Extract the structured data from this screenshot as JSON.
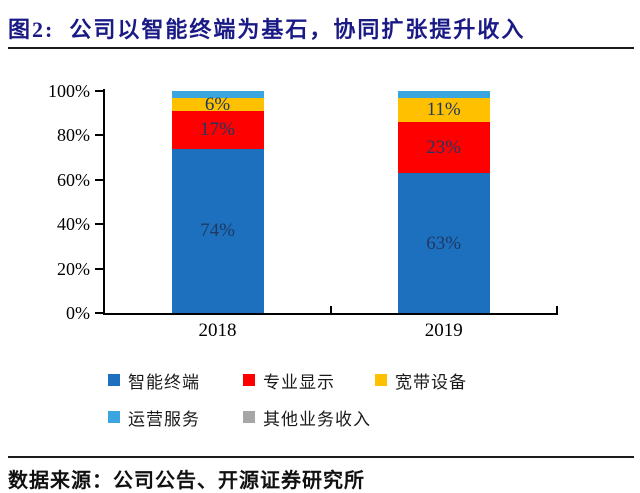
{
  "figure": {
    "title": "图2:  公司以智能终端为基石，协同扩张提升收入",
    "source": "数据来源：公司公告、开源证券研究所"
  },
  "colors": {
    "title_navy": "#1A1A86",
    "bar_label_navy": "#1F3864",
    "axis_black": "#000000"
  },
  "chart_data": {
    "type": "bar",
    "stacked": true,
    "title": "",
    "xlabel": "",
    "ylabel": "",
    "categories": [
      "2018",
      "2019"
    ],
    "series": [
      {
        "name": "智能终端",
        "color": "#1C70BE",
        "values": [
          74,
          63
        ],
        "labels": [
          "74%",
          "63%"
        ]
      },
      {
        "name": "专业显示",
        "color": "#FF0000",
        "values": [
          17,
          23
        ],
        "labels": [
          "17%",
          "23%"
        ]
      },
      {
        "name": "宽带设备",
        "color": "#FFC000",
        "values": [
          6,
          11
        ],
        "labels": [
          "6%",
          "11%"
        ]
      },
      {
        "name": "运营服务",
        "color": "#3AA5DF",
        "values": [
          3,
          3
        ],
        "labels": [
          "",
          ""
        ]
      },
      {
        "name": "其他业务收入",
        "color": "#A6A6A6",
        "values": [
          0,
          0
        ],
        "labels": [
          "",
          ""
        ]
      }
    ],
    "ylim": [
      0,
      100
    ],
    "yticks": [
      0,
      20,
      40,
      60,
      80,
      100
    ],
    "ytick_labels": [
      "0%",
      "20%",
      "40%",
      "60%",
      "80%",
      "100%"
    ],
    "grid": false,
    "legend_position": "bottom"
  }
}
